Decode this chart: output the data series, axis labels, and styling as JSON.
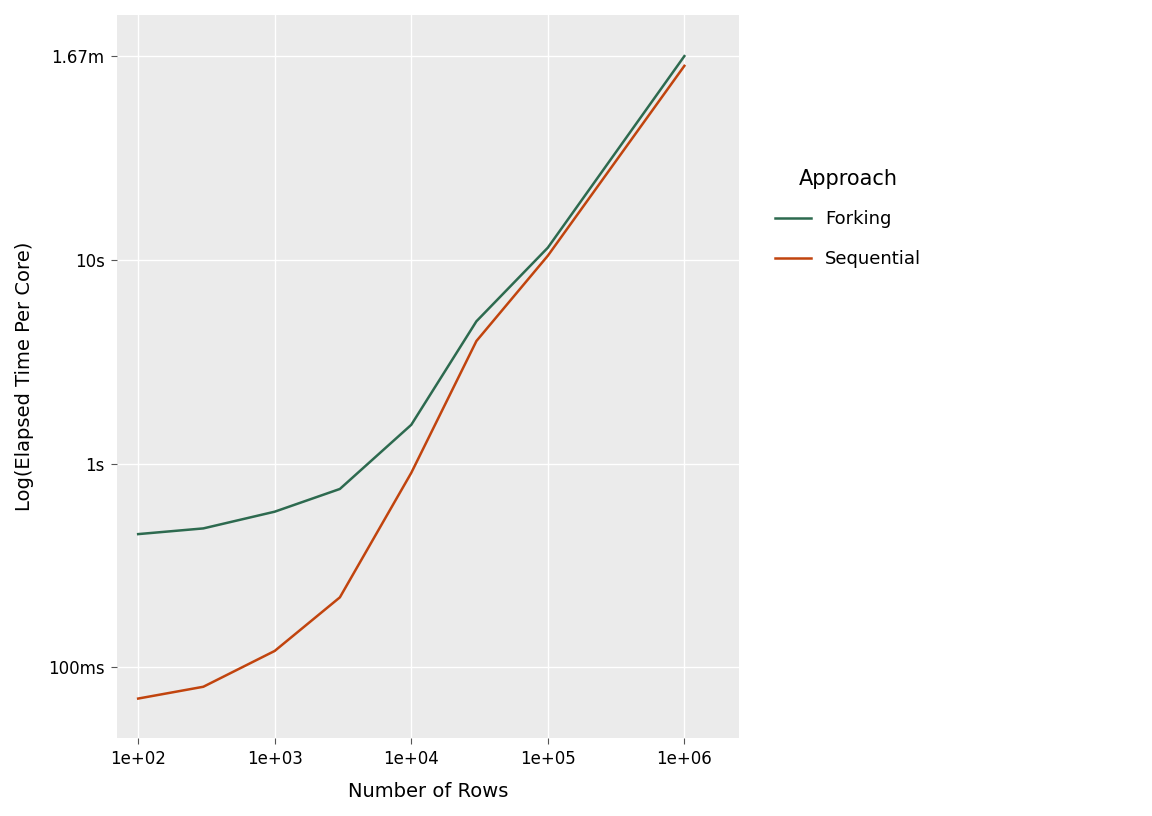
{
  "x_values": [
    100,
    300,
    1000,
    3000,
    10000,
    30000,
    100000,
    1000000
  ],
  "forking_y": [
    0.45,
    0.48,
    0.58,
    0.75,
    1.55,
    5.0,
    11.5,
    100.5
  ],
  "sequential_y": [
    0.07,
    0.08,
    0.12,
    0.22,
    0.9,
    4.0,
    10.5,
    90.0
  ],
  "forking_color": "#2d6a4f",
  "sequential_color": "#c1440e",
  "background_color": "#ebebeb",
  "legend_title": "Approach",
  "legend_labels": [
    "Forking",
    "Sequential"
  ],
  "xlabel": "Number of Rows",
  "ylabel": "Log(Elapsed Time Per Core)",
  "ytick_labels": [
    "100ms",
    "1s",
    "10s",
    "1.67m"
  ],
  "ytick_values": [
    0.1,
    1.0,
    10.0,
    100.2
  ],
  "xtick_values": [
    100,
    1000,
    10000,
    100000,
    1000000
  ],
  "xtick_labels": [
    "1e+02",
    "1e+03",
    "1e+04",
    "1e+05",
    "1e+06"
  ],
  "line_width": 1.8,
  "font_size_axis_label": 14,
  "font_size_tick": 12,
  "font_size_legend_title": 15,
  "font_size_legend": 13,
  "grid_color": "#ffffff",
  "panel_bg": "#ebebeb",
  "outer_bg": "#ffffff",
  "ylim_min": 0.045,
  "ylim_max": 160.0,
  "xlim_min": 70,
  "xlim_max": 2500000
}
